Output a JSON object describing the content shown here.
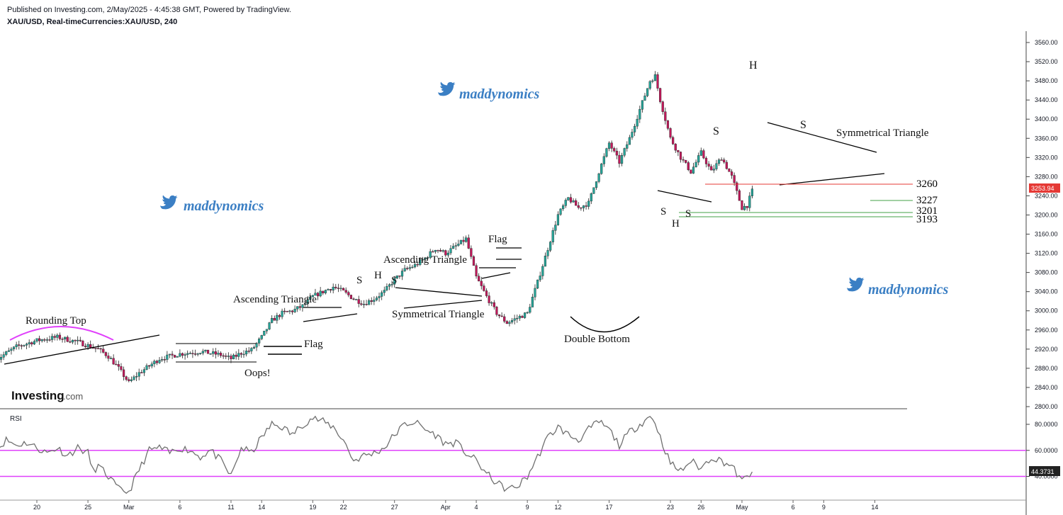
{
  "header": {
    "published": "Published on Investing.com, 2/May/2025 - 4:45:38 GMT, Powered by TradingView.",
    "symbol": "XAU/USD, Real-timeCurrencies:XAU/USD, 240"
  },
  "watermark": {
    "text": "maddynomics",
    "icon": "twitter-bird-icon",
    "color": "#3b7fc4"
  },
  "logo": {
    "brand": "Investing",
    "suffix": ".com"
  },
  "colors": {
    "up": "#26a69a",
    "down": "#c2185b",
    "rsi_band": "#e040fb",
    "rsi_line": "#707070",
    "resistance": "#e53935",
    "support": "#43a047",
    "rounding": "#e040fb"
  },
  "chart_data": [
    {
      "type": "candlestick",
      "title": "XAU/USD, Real-timeCurrencies:XAU/USD, 240",
      "ylim": [
        2790,
        3570
      ],
      "y_ticks": [
        "3560.00",
        "3520.00",
        "3480.00",
        "3440.00",
        "3400.00",
        "3360.00",
        "3320.00",
        "3280.00",
        "3240.00",
        "3200.00",
        "3160.00",
        "3120.00",
        "3080.00",
        "3040.00",
        "3000.00",
        "2960.00",
        "2920.00",
        "2880.00",
        "2840.00",
        "2800.00"
      ],
      "x_ticks": [
        "20",
        "25",
        "Mar",
        "6",
        "11",
        "14",
        "19",
        "22",
        "27",
        "Apr",
        "4",
        "9",
        "12",
        "17",
        "23",
        "26",
        "May",
        "6",
        "9",
        "14"
      ],
      "x_tick_values": [
        20,
        25,
        29,
        34,
        39,
        42,
        47,
        50,
        55,
        60,
        63,
        68,
        71,
        76,
        82,
        85,
        89,
        94,
        97,
        102
      ],
      "close_path": [
        [
          16,
          2898
        ],
        [
          18,
          2925
        ],
        [
          20,
          2938
        ],
        [
          22,
          2945
        ],
        [
          24,
          2935
        ],
        [
          26,
          2920
        ],
        [
          27,
          2905
        ],
        [
          28,
          2880
        ],
        [
          29,
          2850
        ],
        [
          30,
          2870
        ],
        [
          32,
          2900
        ],
        [
          34,
          2910
        ],
        [
          36,
          2915
        ],
        [
          38,
          2908
        ],
        [
          39,
          2900
        ],
        [
          40,
          2912
        ],
        [
          41,
          2918
        ],
        [
          42,
          2945
        ],
        [
          43,
          2980
        ],
        [
          44,
          2995
        ],
        [
          45,
          3000
        ],
        [
          46,
          3010
        ],
        [
          47,
          3030
        ],
        [
          48,
          3040
        ],
        [
          49,
          3050
        ],
        [
          50,
          3040
        ],
        [
          51,
          3025
        ],
        [
          52,
          3015
        ],
        [
          53,
          3025
        ],
        [
          54,
          3040
        ],
        [
          55,
          3065
        ],
        [
          56,
          3085
        ],
        [
          57,
          3095
        ],
        [
          58,
          3110
        ],
        [
          59,
          3130
        ],
        [
          60,
          3120
        ],
        [
          61,
          3135
        ],
        [
          62,
          3150
        ],
        [
          62.5,
          3110
        ],
        [
          63,
          3070
        ],
        [
          64,
          3030
        ],
        [
          65,
          2995
        ],
        [
          66,
          2975
        ],
        [
          67,
          2985
        ],
        [
          68,
          2995
        ],
        [
          69,
          3060
        ],
        [
          70,
          3130
        ],
        [
          71,
          3200
        ],
        [
          72,
          3235
        ],
        [
          73,
          3215
        ],
        [
          74,
          3225
        ],
        [
          75,
          3290
        ],
        [
          76,
          3350
        ],
        [
          77,
          3310
        ],
        [
          78,
          3360
        ],
        [
          79,
          3420
        ],
        [
          80,
          3480
        ],
        [
          80.5,
          3490
        ],
        [
          81,
          3440
        ],
        [
          82,
          3360
        ],
        [
          83,
          3320
        ],
        [
          84,
          3290
        ],
        [
          85,
          3330
        ],
        [
          86,
          3290
        ],
        [
          87,
          3320
        ],
        [
          88,
          3280
        ],
        [
          89,
          3215
        ],
        [
          89.5,
          3220
        ],
        [
          90,
          3250
        ]
      ],
      "current_price": "3253.94",
      "levels": [
        {
          "label": "3260",
          "value": 3260,
          "color": "red"
        },
        {
          "label": "3227",
          "value": 3227,
          "color": "green"
        },
        {
          "label": "3201",
          "value": 3201,
          "color": "green"
        },
        {
          "label": "3193",
          "value": 3193,
          "color": "green"
        }
      ],
      "annotations": [
        "Rounding Top",
        "Oops!",
        "Flag",
        "Ascending Triangle",
        "S",
        "H",
        "S",
        "Symmetrical Triangle",
        "Ascending Triangle",
        "Flag",
        "Double Bottom",
        "S",
        "H",
        "S",
        "S",
        "H",
        "S",
        "Symmetrical Triangle"
      ]
    },
    {
      "type": "line",
      "title": "RSI",
      "ylim": [
        20,
        90
      ],
      "y_ticks": [
        "80.0000",
        "60.0000",
        "40.0000"
      ],
      "bands": [
        60,
        40
      ],
      "current_value": "44.3731",
      "values_path": [
        [
          16,
          60
        ],
        [
          17,
          68
        ],
        [
          18,
          64
        ],
        [
          19,
          66
        ],
        [
          20,
          62
        ],
        [
          21,
          58
        ],
        [
          22,
          62
        ],
        [
          23,
          56
        ],
        [
          24,
          62
        ],
        [
          25,
          58
        ],
        [
          25.5,
          44
        ],
        [
          26,
          48
        ],
        [
          27,
          40
        ],
        [
          28,
          30
        ],
        [
          29,
          28
        ],
        [
          30,
          45
        ],
        [
          31,
          60
        ],
        [
          32,
          62
        ],
        [
          33,
          58
        ],
        [
          34,
          62
        ],
        [
          35,
          60
        ],
        [
          36,
          55
        ],
        [
          37,
          60
        ],
        [
          38,
          52
        ],
        [
          39,
          40
        ],
        [
          40,
          62
        ],
        [
          41,
          58
        ],
        [
          42,
          70
        ],
        [
          43,
          80
        ],
        [
          44,
          78
        ],
        [
          45,
          72
        ],
        [
          46,
          80
        ],
        [
          47,
          85
        ],
        [
          48,
          82
        ],
        [
          49,
          78
        ],
        [
          50,
          68
        ],
        [
          51,
          52
        ],
        [
          52,
          56
        ],
        [
          53,
          58
        ],
        [
          54,
          62
        ],
        [
          55,
          72
        ],
        [
          56,
          80
        ],
        [
          57,
          82
        ],
        [
          58,
          76
        ],
        [
          59,
          72
        ],
        [
          60,
          65
        ],
        [
          61,
          66
        ],
        [
          62,
          58
        ],
        [
          63,
          52
        ],
        [
          64,
          42
        ],
        [
          65,
          35
        ],
        [
          66,
          30
        ],
        [
          67,
          32
        ],
        [
          68,
          40
        ],
        [
          69,
          55
        ],
        [
          70,
          70
        ],
        [
          71,
          78
        ],
        [
          72,
          72
        ],
        [
          73,
          68
        ],
        [
          74,
          76
        ],
        [
          75,
          82
        ],
        [
          76,
          76
        ],
        [
          77,
          64
        ],
        [
          78,
          74
        ],
        [
          79,
          80
        ],
        [
          80,
          86
        ],
        [
          80.5,
          82
        ],
        [
          81,
          70
        ],
        [
          82,
          50
        ],
        [
          83,
          44
        ],
        [
          84,
          52
        ],
        [
          85,
          46
        ],
        [
          86,
          55
        ],
        [
          87,
          52
        ],
        [
          88,
          48
        ],
        [
          89,
          36
        ],
        [
          90,
          44
        ]
      ]
    }
  ],
  "labels": {
    "rsi": "RSI",
    "rounding_top": "Rounding Top",
    "oops": "Oops!",
    "flag1": "Flag",
    "asc_tri1": "Ascending Triangle",
    "s1": "S",
    "h1": "H",
    "s2": "S",
    "sym_tri1": "Symmetrical Triangle",
    "asc_tri2": "Ascending Triangle",
    "flag2": "Flag",
    "double_bottom": "Double Bottom",
    "s3": "S",
    "h2": "H",
    "s4": "S",
    "s5": "S",
    "h3": "H",
    "s6": "S",
    "sym_tri2": "Symmetrical Triangle"
  }
}
